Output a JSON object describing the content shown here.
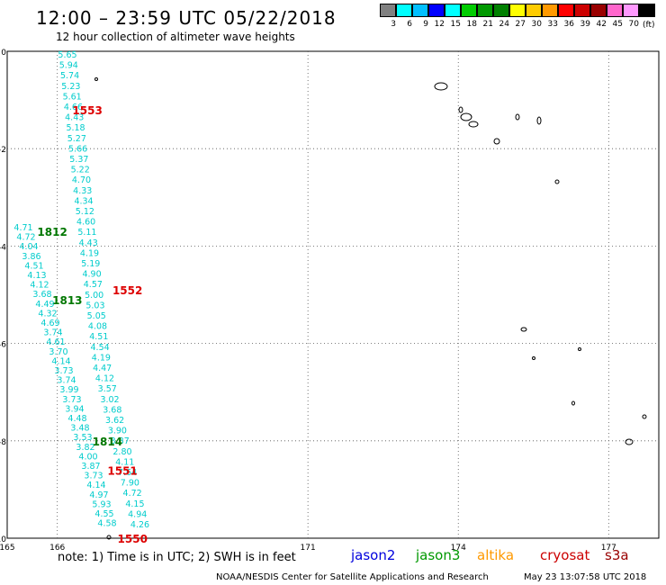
{
  "header": {
    "title": "12:00 – 23:59 UTC 05/22/2018",
    "subtitle": "12 hour collection of altimeter wave heights"
  },
  "legend": {
    "colors": [
      "#808080",
      "#00ffff",
      "#00bfff",
      "#0000ff",
      "#00ffff",
      "#00cc00",
      "#009900",
      "#008000",
      "#ffff00",
      "#ffcc00",
      "#ff9900",
      "#ff0000",
      "#cc0000",
      "#990000",
      "#ff66cc",
      "#ff99ff",
      "#000000"
    ],
    "labels": [
      "3",
      "6",
      "9",
      "12",
      "15",
      "18",
      "21",
      "24",
      "27",
      "30",
      "33",
      "36",
      "39",
      "42",
      "45",
      "70"
    ],
    "unit": "(ft)"
  },
  "map": {
    "lon_range": [
      165,
      178
    ],
    "lat_range": [
      -10,
      0
    ],
    "x_ticks": [
      "165",
      "166",
      "171",
      "174",
      "177"
    ],
    "y_ticks": [
      "0",
      "-2",
      "-4",
      "-6",
      "-8",
      "-10"
    ],
    "grid": true,
    "pass_labels": [
      {
        "text": "1553",
        "color": "#dd0000",
        "lon": 166.6,
        "lat": -1.2
      },
      {
        "text": "1812",
        "color": "#007700",
        "lon": 165.9,
        "lat": -3.7
      },
      {
        "text": "1813",
        "color": "#007700",
        "lon": 166.2,
        "lat": -5.1
      },
      {
        "text": "1552",
        "color": "#dd0000",
        "lon": 167.4,
        "lat": -4.9
      },
      {
        "text": "1814",
        "color": "#007700",
        "lon": 167.0,
        "lat": -8.0
      },
      {
        "text": "1551",
        "color": "#dd0000",
        "lon": 167.3,
        "lat": -8.6
      },
      {
        "text": "1550",
        "color": "#dd0000",
        "lon": 167.5,
        "lat": -10.0
      }
    ],
    "readings_track_a": [
      "5.65",
      "5.94",
      "5.74",
      "5.23",
      "5.61",
      "4.66",
      "4.43",
      "5.18",
      "5.27",
      "5.66",
      "5.37",
      "5.22",
      "4.70",
      "4.33",
      "4.34",
      "5.12",
      "4.60",
      "5.11",
      "4.43",
      "4.19",
      "5.19",
      "4.90",
      "4.57",
      "5.00",
      "5.03",
      "5.05",
      "4.08",
      "4.51",
      "4.54",
      "4.19",
      "4.47",
      "4.12",
      "3.57",
      "3.02",
      "3.68",
      "3.62",
      "3.90",
      "3.87",
      "2.80",
      "4.11",
      "7.64",
      "7.90",
      "4.72",
      "4.15",
      "4.94",
      "4.26"
    ],
    "readings_track_b": [
      "4.71",
      "4.72",
      "4.04",
      "3.86",
      "4.51",
      "4.13",
      "4.12",
      "3.68",
      "4.49",
      "4.32",
      "4.69",
      "3.74",
      "4.61",
      "3.70",
      "4.14",
      "3.73",
      "3.74",
      "3.99",
      "3.73",
      "3.94",
      "4.48",
      "3.48",
      "3.53",
      "3.82",
      "4.00",
      "3.87",
      "3.73",
      "4.14",
      "4.97",
      "5.93",
      "4.55",
      "4.58"
    ]
  },
  "footer": {
    "note": "note:  1) Time is in UTC;  2) SWH is in feet",
    "satellites": [
      {
        "name": "jason2",
        "color": "#0000dd"
      },
      {
        "name": "jason3",
        "color": "#009900"
      },
      {
        "name": "altika",
        "color": "#ff9900"
      },
      {
        "name": "cryosat",
        "color": "#cc0000"
      },
      {
        "name": "s3a",
        "color": "#990000"
      }
    ],
    "credit": "NOAA/NESDIS Center for Satellite Applications and Research",
    "timestamp": "May 23 13:07:58 UTC 2018"
  }
}
